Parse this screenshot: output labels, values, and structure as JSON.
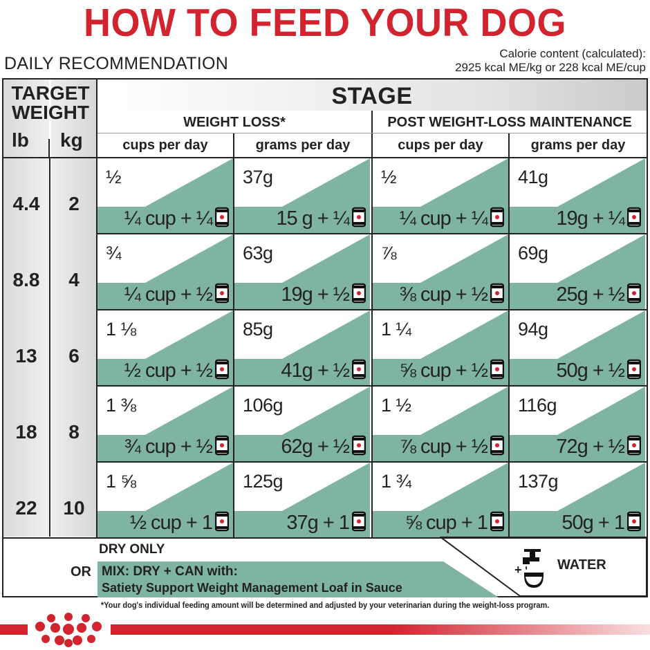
{
  "title": "HOW TO FEED YOUR DOG",
  "daily_label": "DAILY RECOMMENDATION",
  "calorie": {
    "line1": "Calorie content (calculated):",
    "line2": "2925 kcal ME/kg or 228 kcal ME/cup"
  },
  "header": {
    "target": "TARGET",
    "weight": "WEIGHT",
    "lb": "lb",
    "kg": "kg",
    "stage": "STAGE",
    "weight_loss": "WEIGHT LOSS*",
    "maintenance": "POST WEIGHT-LOSS MAINTENANCE",
    "cups": "cups per day",
    "grams": "grams per day"
  },
  "rows": [
    {
      "lb": "4.4",
      "kg": "2",
      "cells": [
        {
          "dry": "½",
          "mix": "¼ cup + ¼"
        },
        {
          "dry": "37g",
          "mix": "15 g + ¼"
        },
        {
          "dry": "½",
          "mix": "¼ cup + ¼"
        },
        {
          "dry": "41g",
          "mix": "19g + ¼"
        }
      ]
    },
    {
      "lb": "8.8",
      "kg": "4",
      "cells": [
        {
          "dry": "¾",
          "mix": "¼ cup + ½"
        },
        {
          "dry": "63g",
          "mix": "19g + ½"
        },
        {
          "dry": "⅞",
          "mix": "⅜ cup + ½"
        },
        {
          "dry": "69g",
          "mix": "25g + ½"
        }
      ]
    },
    {
      "lb": "13",
      "kg": "6",
      "cells": [
        {
          "dry": "1 ⅛",
          "mix": "½ cup + ½"
        },
        {
          "dry": "85g",
          "mix": "41g + ½"
        },
        {
          "dry": "1 ¼",
          "mix": "⅝ cup + ½"
        },
        {
          "dry": "94g",
          "mix": "50g + ½"
        }
      ]
    },
    {
      "lb": "18",
      "kg": "8",
      "cells": [
        {
          "dry": "1 ⅜",
          "mix": "¾ cup + ½"
        },
        {
          "dry": "106g",
          "mix": "62g + ½"
        },
        {
          "dry": "1 ½",
          "mix": "⅞ cup + ½"
        },
        {
          "dry": "116g",
          "mix": "72g + ½"
        }
      ]
    },
    {
      "lb": "22",
      "kg": "10",
      "cells": [
        {
          "dry": "1 ⅝",
          "mix": "½ cup + 1"
        },
        {
          "dry": "125g",
          "mix": "37g + 1"
        },
        {
          "dry": "1 ¾",
          "mix": "⅝ cup + 1"
        },
        {
          "dry": "137g",
          "mix": "50g + 1"
        }
      ]
    }
  ],
  "legend": {
    "dry_only": "DRY ONLY",
    "or": "OR",
    "mix_line1": "MIX: DRY + CAN with:",
    "mix_line2": "Satiety Support Weight Management Loaf in Sauce",
    "water": "WATER",
    "plus": "+"
  },
  "footnote": "*Your dog's individual feeding amount will be determined and adjusted by your veterinarian during the weight-loss program.",
  "icons": {
    "can": "can-icon",
    "tap": "water-tap-icon",
    "logo": "crown-logo"
  },
  "colors": {
    "brand_red": "#d2242f",
    "mix_green": "#7fb3a3",
    "text": "#222222"
  }
}
